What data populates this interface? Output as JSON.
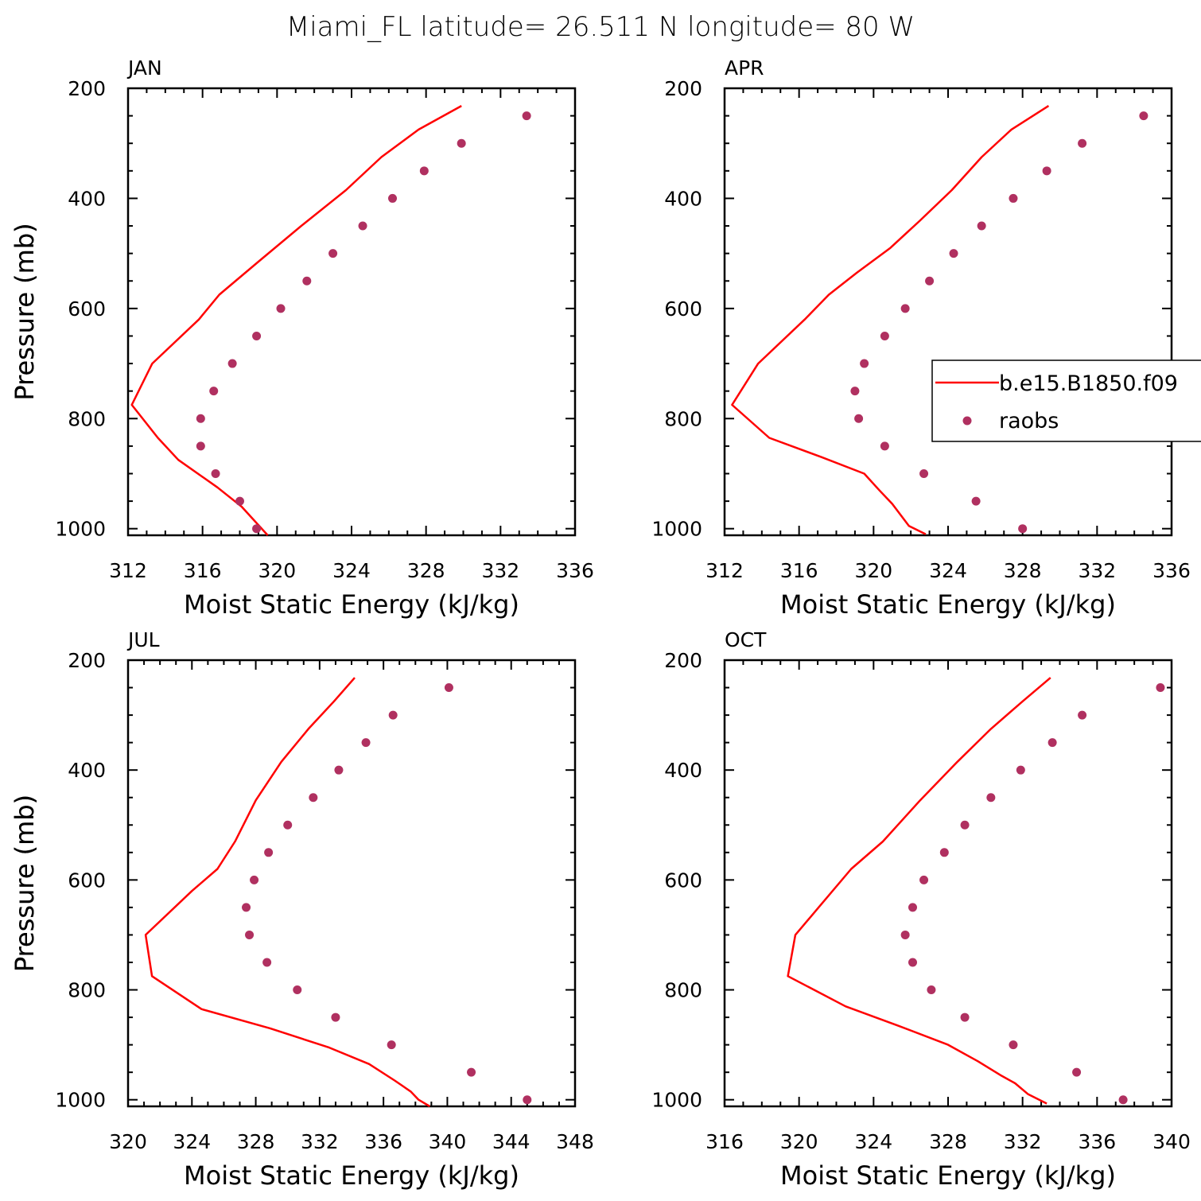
{
  "page": {
    "title": "Miami_FL  latitude= 26.511 N longitude= 80 W"
  },
  "legend": {
    "items": [
      {
        "label": "b.e15.B1850.f09",
        "kind": "line"
      },
      {
        "label": "raobs",
        "kind": "marker"
      }
    ]
  },
  "colors": {
    "model_line": "#ff0000",
    "raobs_marker": "#b03060",
    "axis": "#000000"
  },
  "chart_data": [
    {
      "type": "line",
      "month": "JAN",
      "xlabel": "Moist Static Energy (kJ/kg)",
      "ylabel": "Pressure (mb)",
      "xlim": [
        312,
        336
      ],
      "xticks": [
        312,
        316,
        320,
        324,
        328,
        332,
        336
      ],
      "ylim": [
        1012,
        200
      ],
      "yticks": [
        200,
        400,
        600,
        800,
        1000
      ],
      "series": [
        {
          "name": "b.e15.B1850.f09",
          "x": [
            329.9,
            327.6,
            325.6,
            323.7,
            321.3,
            319.0,
            316.9,
            315.8,
            313.3,
            312.2,
            313.6,
            314.7,
            316.8,
            318.1,
            319.5
          ],
          "y": [
            232,
            275,
            325,
            385,
            450,
            515,
            575,
            620,
            700,
            775,
            835,
            875,
            925,
            960,
            1012
          ]
        },
        {
          "name": "raobs",
          "x": [
            333.4,
            329.9,
            327.9,
            326.2,
            324.6,
            323.0,
            321.6,
            320.2,
            318.9,
            317.6,
            316.6,
            315.9,
            315.9,
            316.7,
            318.0,
            318.9
          ],
          "y": [
            250,
            300,
            350,
            400,
            450,
            500,
            550,
            600,
            650,
            700,
            750,
            800,
            850,
            900,
            950,
            1000
          ]
        }
      ]
    },
    {
      "type": "line",
      "month": "APR",
      "xlabel": "Moist Static Energy (kJ/kg)",
      "ylabel": "Pressure (mb)",
      "xlim": [
        312,
        336
      ],
      "xticks": [
        312,
        316,
        320,
        324,
        328,
        332,
        336
      ],
      "ylim": [
        1012,
        200
      ],
      "yticks": [
        200,
        400,
        600,
        800,
        1000
      ],
      "series": [
        {
          "name": "b.e15.B1850.f09",
          "x": [
            329.4,
            327.4,
            325.8,
            324.2,
            322.5,
            320.9,
            319.1,
            317.6,
            316.3,
            313.8,
            312.4,
            314.4,
            317.2,
            319.5,
            320.3,
            321.0,
            321.9,
            322.8
          ],
          "y": [
            232,
            275,
            325,
            385,
            440,
            490,
            535,
            575,
            620,
            700,
            775,
            835,
            870,
            900,
            930,
            955,
            995,
            1010
          ]
        },
        {
          "name": "raobs",
          "x": [
            334.5,
            331.2,
            329.3,
            327.5,
            325.8,
            324.3,
            323.0,
            321.7,
            320.6,
            319.5,
            319.0,
            319.2,
            320.6,
            322.7,
            325.5,
            328.0
          ],
          "y": [
            250,
            300,
            350,
            400,
            450,
            500,
            550,
            600,
            650,
            700,
            750,
            800,
            850,
            900,
            950,
            1000
          ]
        }
      ]
    },
    {
      "type": "line",
      "month": "JUL",
      "xlabel": "Moist Static Energy (kJ/kg)",
      "ylabel": "Pressure (mb)",
      "xlim": [
        320,
        348
      ],
      "xticks": [
        320,
        324,
        328,
        332,
        336,
        340,
        344,
        348
      ],
      "ylim": [
        1012,
        200
      ],
      "yticks": [
        200,
        400,
        600,
        800,
        1000
      ],
      "series": [
        {
          "name": "b.e15.B1850.f09",
          "x": [
            334.2,
            332.9,
            331.3,
            329.6,
            328.0,
            326.7,
            325.6,
            324.0,
            321.1,
            321.5,
            324.6,
            328.9,
            332.6,
            335.1,
            336.7,
            337.7,
            338.2,
            338.9
          ],
          "y": [
            232,
            275,
            325,
            385,
            455,
            530,
            580,
            620,
            700,
            775,
            835,
            870,
            905,
            935,
            965,
            985,
            1000,
            1012
          ]
        },
        {
          "name": "raobs",
          "x": [
            340.1,
            336.6,
            334.9,
            333.2,
            331.6,
            330.0,
            328.8,
            327.9,
            327.4,
            327.6,
            328.7,
            330.6,
            333.0,
            336.5,
            341.5,
            345.0
          ],
          "y": [
            250,
            300,
            350,
            400,
            450,
            500,
            550,
            600,
            650,
            700,
            750,
            800,
            850,
            900,
            950,
            1000
          ]
        }
      ]
    },
    {
      "type": "line",
      "month": "OCT",
      "xlabel": "Moist Static Energy (kJ/kg)",
      "ylabel": "Pressure (mb)",
      "xlim": [
        316,
        340
      ],
      "xticks": [
        316,
        320,
        324,
        328,
        332,
        336,
        340
      ],
      "ylim": [
        1012,
        200
      ],
      "yticks": [
        200,
        400,
        600,
        800,
        1000
      ],
      "series": [
        {
          "name": "b.e15.B1850.f09",
          "x": [
            333.5,
            332.0,
            330.3,
            328.5,
            326.5,
            324.5,
            322.8,
            319.8,
            319.4,
            322.5,
            325.3,
            328.0,
            329.6,
            330.8,
            331.6,
            332.3,
            333.3
          ],
          "y": [
            232,
            275,
            325,
            385,
            455,
            530,
            580,
            700,
            775,
            830,
            865,
            900,
            930,
            955,
            970,
            990,
            1007
          ]
        },
        {
          "name": "raobs",
          "x": [
            339.4,
            335.2,
            333.6,
            331.9,
            330.3,
            328.9,
            327.8,
            326.7,
            326.1,
            325.7,
            326.1,
            327.1,
            328.9,
            331.5,
            334.9,
            337.4
          ],
          "y": [
            250,
            300,
            350,
            400,
            450,
            500,
            550,
            600,
            650,
            700,
            750,
            800,
            850,
            900,
            950,
            1000
          ]
        }
      ]
    }
  ]
}
